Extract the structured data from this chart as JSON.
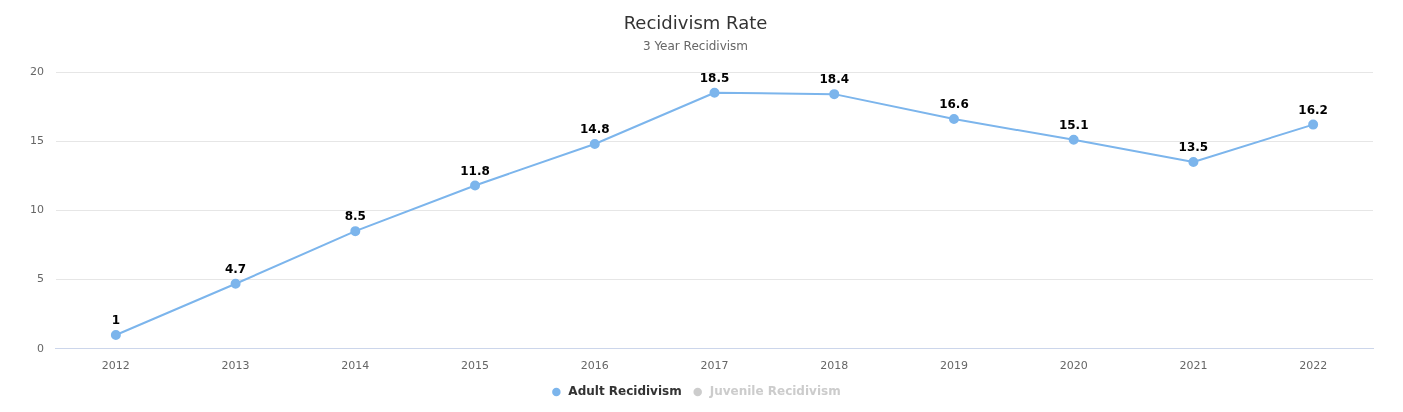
{
  "chart_data": {
    "type": "line",
    "title": "Recidivism Rate",
    "subtitle": "3 Year Recidivism",
    "categories": [
      "2012",
      "2013",
      "2014",
      "2015",
      "2016",
      "2017",
      "2018",
      "2019",
      "2020",
      "2021",
      "2022"
    ],
    "series": [
      {
        "name": "Adult Recidivism",
        "color": "#7cb5ec",
        "values": [
          1,
          4.7,
          8.5,
          11.8,
          14.8,
          18.5,
          18.4,
          16.6,
          15.1,
          13.5,
          16.2
        ]
      },
      {
        "name": "Juvenile Recidivism",
        "color": "#cccccc",
        "values": [
          null,
          null,
          null,
          null,
          null,
          null,
          null,
          null,
          null,
          null,
          null
        ]
      }
    ],
    "ylim": [
      0,
      20
    ],
    "yticks": [
      0,
      5,
      10,
      15,
      20
    ],
    "grid": "y",
    "legend": "bottom",
    "marker": "circle",
    "line_style": "solid",
    "data_labels": true
  }
}
